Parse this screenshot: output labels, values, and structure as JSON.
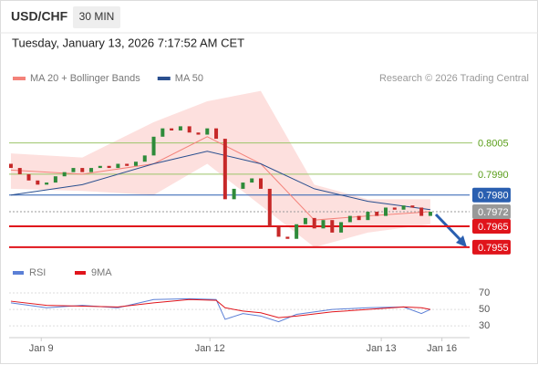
{
  "header": {
    "symbol": "USD/CHF",
    "interval": "30 MIN",
    "timestamp": "Tuesday, January 13, 2026 7:17:52 AM CET",
    "credit": "Research © 2026 Trading Central"
  },
  "chart_data": [
    {
      "type": "candlestick",
      "legend": [
        {
          "name": "MA 20 + Bollinger Bands",
          "color": "#f4827a"
        },
        {
          "name": "MA 50",
          "color": "#2a4f8f"
        }
      ],
      "ylim": [
        0.7951,
        0.8032
      ],
      "xlim": [
        -0.2,
        51.4
      ],
      "xticks": [
        {
          "value": 3.4,
          "label": "Jan 9"
        },
        {
          "value": 22.3,
          "label": "Jan 12"
        },
        {
          "value": 41.5,
          "label": "Jan 13"
        },
        {
          "value": 48.3,
          "label": "Jan 16"
        }
      ],
      "open": [
        0.7995,
        0.7993,
        0.799,
        0.7987,
        0.7985,
        0.7986,
        0.7989,
        0.7991,
        0.7993,
        0.7991,
        0.7993,
        0.7994,
        0.7993,
        0.7995,
        0.7994,
        0.7996,
        0.7999,
        0.8008,
        0.8012,
        0.8011,
        0.8013,
        0.801,
        0.8009,
        0.8012,
        0.8007,
        0.7978,
        0.7983,
        0.7986,
        0.7988,
        0.7983,
        0.7965,
        0.796,
        0.7959,
        0.7966,
        0.7969,
        0.7964,
        0.7968,
        0.7962,
        0.7967,
        0.797,
        0.7968,
        0.7972,
        0.797,
        0.7974,
        0.7973,
        0.7975,
        0.7974,
        0.797
      ],
      "close": [
        0.7993,
        0.799,
        0.7987,
        0.7985,
        0.7986,
        0.7989,
        0.7991,
        0.7993,
        0.7991,
        0.7993,
        0.7994,
        0.7993,
        0.7995,
        0.7994,
        0.7996,
        0.7999,
        0.8008,
        0.8012,
        0.8011,
        0.8013,
        0.801,
        0.8009,
        0.8012,
        0.8007,
        0.7978,
        0.7983,
        0.7986,
        0.7988,
        0.7983,
        0.7965,
        0.796,
        0.7959,
        0.7966,
        0.7969,
        0.7964,
        0.7968,
        0.7962,
        0.7967,
        0.797,
        0.7968,
        0.7972,
        0.797,
        0.7974,
        0.7973,
        0.7975,
        0.7974,
        0.797,
        0.7972
      ],
      "up_color": "#2e8b3a",
      "down_color": "#c62828",
      "band": {
        "x": [
          0,
          8,
          16,
          22,
          28,
          34,
          40,
          47
        ],
        "upper": [
          0.8,
          0.7998,
          0.8015,
          0.8025,
          0.803,
          0.7985,
          0.7978,
          0.7978
        ],
        "lower": [
          0.7983,
          0.7982,
          0.798,
          0.7995,
          0.7975,
          0.7955,
          0.7962,
          0.7966
        ],
        "color": "#fde0de"
      },
      "series": [
        {
          "name": "MA 20",
          "color": "#f4827a",
          "x": [
            0,
            8,
            16,
            22,
            28,
            34,
            40,
            47
          ],
          "values": [
            0.7992,
            0.799,
            0.7995,
            0.8008,
            0.7995,
            0.7968,
            0.797,
            0.7972
          ]
        },
        {
          "name": "MA 50",
          "color": "#2a4f8f",
          "x": [
            0,
            8,
            16,
            22,
            28,
            34,
            40,
            47
          ],
          "values": [
            0.798,
            0.7985,
            0.7995,
            0.8001,
            0.7995,
            0.7983,
            0.7977,
            0.7973
          ]
        }
      ],
      "levels": [
        {
          "value": 0.8005,
          "color": "#9bc46a",
          "text_color": "#5a9e1a",
          "boxed": false
        },
        {
          "value": 0.799,
          "label": "0.7990",
          "color": "#9bc46a",
          "text_color": "#5a9e1a",
          "boxed": false
        },
        {
          "value": 0.798,
          "label": "0.7980",
          "color": "#2a5fb0",
          "boxed": true
        },
        {
          "value": 0.7972,
          "color": "#999999",
          "boxed": true,
          "dashed": true
        },
        {
          "value": 0.7965,
          "color": "#e0141b",
          "boxed": true
        },
        {
          "value": 0.7955,
          "color": "#e0141b",
          "boxed": true
        }
      ]
    },
    {
      "type": "line",
      "ylim": [
        18,
        80
      ],
      "xlim": [
        -0.2,
        51.4
      ],
      "yticks": [
        70,
        50,
        30
      ],
      "series": [
        {
          "name": "RSI",
          "color": "#5b7fd6",
          "x": [
            0,
            4,
            8,
            12,
            16,
            20,
            23,
            24,
            26,
            28,
            30,
            32,
            36,
            40,
            44,
            46,
            47
          ],
          "values": [
            58,
            52,
            55,
            52,
            62,
            63,
            62,
            38,
            45,
            42,
            35,
            44,
            50,
            52,
            53,
            45,
            50
          ]
        },
        {
          "name": "9MA",
          "color": "#e0141b",
          "x": [
            0,
            4,
            8,
            12,
            16,
            20,
            23,
            24,
            26,
            28,
            30,
            32,
            36,
            40,
            44,
            46,
            47
          ],
          "values": [
            60,
            55,
            54,
            53,
            58,
            62,
            61,
            52,
            48,
            46,
            40,
            42,
            47,
            50,
            53,
            52,
            50
          ]
        }
      ]
    }
  ]
}
